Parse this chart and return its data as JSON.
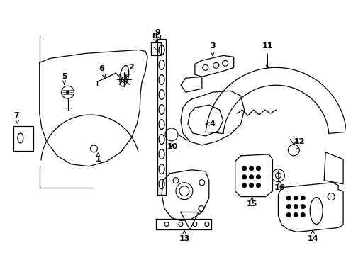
{
  "bg_color": "#ffffff",
  "line_color": "#000000",
  "fig_width": 4.89,
  "fig_height": 3.6,
  "dpi": 100
}
